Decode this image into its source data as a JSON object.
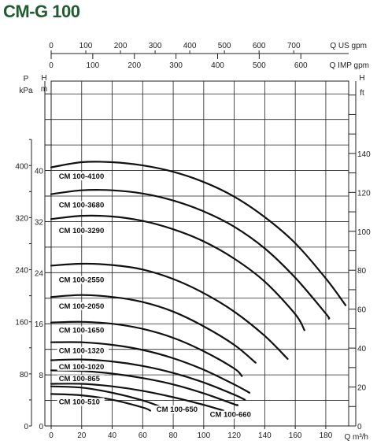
{
  "title": "CM-G 100",
  "chart_data": {
    "type": "line",
    "title": "CM-G 100",
    "x_unit": "Q m³/h",
    "x_ticks": [
      0,
      20,
      40,
      60,
      80,
      100,
      120,
      140,
      160,
      180
    ],
    "xlim": [
      0,
      195
    ],
    "us_gpm_unit": "Q US gpm",
    "us_gpm_ticks": [
      0,
      100,
      200,
      300,
      400,
      500,
      600,
      700
    ],
    "imp_gpm_unit": "Q IMP gpm",
    "imp_gpm_ticks": [
      0,
      100,
      200,
      300,
      400,
      500,
      600
    ],
    "left_h_unit": "m",
    "left_h_header": "H",
    "left_h_ticks": [
      0,
      8,
      16,
      24,
      32,
      40
    ],
    "p_unit": "kPa",
    "p_header": "P",
    "p_ticks": [
      0,
      80,
      160,
      240,
      320,
      400
    ],
    "right_h_unit": "ft",
    "right_h_header": "H",
    "right_h_ticks": [
      0,
      20,
      40,
      60,
      80,
      100,
      120,
      140
    ],
    "ylim_m": [
      0,
      54
    ],
    "grid": true,
    "series": [
      {
        "name": "CM 100-4100",
        "label_at": [
          5,
          38.7
        ],
        "x": [
          0,
          20,
          40,
          60,
          80,
          100,
          120,
          140,
          160,
          180,
          193
        ],
        "y": [
          40.5,
          41.3,
          41.3,
          40.8,
          39.8,
          38.2,
          35.9,
          32.7,
          28.6,
          23.1,
          18.9
        ]
      },
      {
        "name": "CM 100-3680",
        "label_at": [
          5,
          34.2
        ],
        "x": [
          0,
          20,
          40,
          60,
          80,
          100,
          120,
          140,
          160,
          180,
          182
        ],
        "y": [
          36.3,
          36.9,
          36.9,
          36.4,
          35.3,
          33.6,
          31.2,
          27.8,
          23.2,
          17.6,
          16.8
        ]
      },
      {
        "name": "CM 100-3290",
        "label_at": [
          5,
          30.2
        ],
        "x": [
          0,
          20,
          40,
          60,
          80,
          100,
          120,
          140,
          160,
          166
        ],
        "y": [
          32.4,
          32.9,
          32.8,
          32.1,
          30.8,
          28.9,
          26.2,
          22.6,
          17.5,
          15.0
        ]
      },
      {
        "name": "CM 100-2550",
        "label_at": [
          5,
          22.5
        ],
        "x": [
          0,
          20,
          40,
          60,
          80,
          100,
          120,
          140,
          155
        ],
        "y": [
          25.1,
          25.4,
          25.2,
          24.5,
          23.0,
          20.8,
          17.9,
          14.1,
          10.5
        ]
      },
      {
        "name": "CM 100-2050",
        "label_at": [
          5,
          18.4
        ],
        "x": [
          0,
          20,
          40,
          60,
          80,
          100,
          120,
          134
        ],
        "y": [
          20.2,
          20.5,
          20.2,
          19.4,
          17.9,
          15.6,
          12.7,
          9.9
        ]
      },
      {
        "name": "CM 100-1650",
        "label_at": [
          5,
          14.6
        ],
        "x": [
          0,
          20,
          40,
          60,
          80,
          100,
          120,
          125
        ],
        "y": [
          16.2,
          16.3,
          16.0,
          15.2,
          13.8,
          11.7,
          9.0,
          7.8
        ]
      },
      {
        "name": "CM 100-1320",
        "label_at": [
          5,
          11.4
        ],
        "x": [
          0,
          20,
          40,
          60,
          80,
          100,
          120,
          130
        ],
        "y": [
          13.1,
          13.1,
          12.7,
          11.9,
          10.6,
          8.8,
          6.5,
          5.2
        ]
      },
      {
        "name": "CM 100-1020",
        "label_at": [
          5,
          8.9
        ],
        "x": [
          0,
          20,
          40,
          60,
          80,
          100,
          120,
          127
        ],
        "y": [
          10.3,
          10.4,
          10.1,
          9.4,
          8.3,
          6.8,
          4.9,
          4.1
        ]
      },
      {
        "name": "CM 100-865",
        "label_at": [
          5,
          7.0
        ],
        "x": [
          0,
          20,
          40,
          60,
          80,
          100,
          120,
          122
        ],
        "y": [
          8.7,
          8.6,
          8.2,
          7.5,
          6.5,
          5.1,
          3.4,
          3.3
        ]
      },
      {
        "name": "CM 100-660",
        "label_at": [
          104,
          1.4
        ],
        "x": [
          0,
          20,
          40,
          60,
          80,
          100,
          113
        ],
        "y": [
          6.6,
          6.6,
          6.2,
          5.5,
          4.5,
          3.3,
          2.4
        ]
      },
      {
        "name": "CM 100-650",
        "label_at": [
          69,
          2.2
        ],
        "x": [
          0,
          20,
          40,
          60,
          73
        ],
        "y": [
          6.2,
          6.0,
          5.2,
          4.0,
          2.9
        ]
      },
      {
        "name": "CM 100-510",
        "label_at": [
          5,
          3.4
        ],
        "x": [
          0,
          20,
          40,
          60,
          65
        ],
        "y": [
          5.0,
          4.8,
          4.1,
          2.9,
          2.4
        ]
      }
    ]
  }
}
